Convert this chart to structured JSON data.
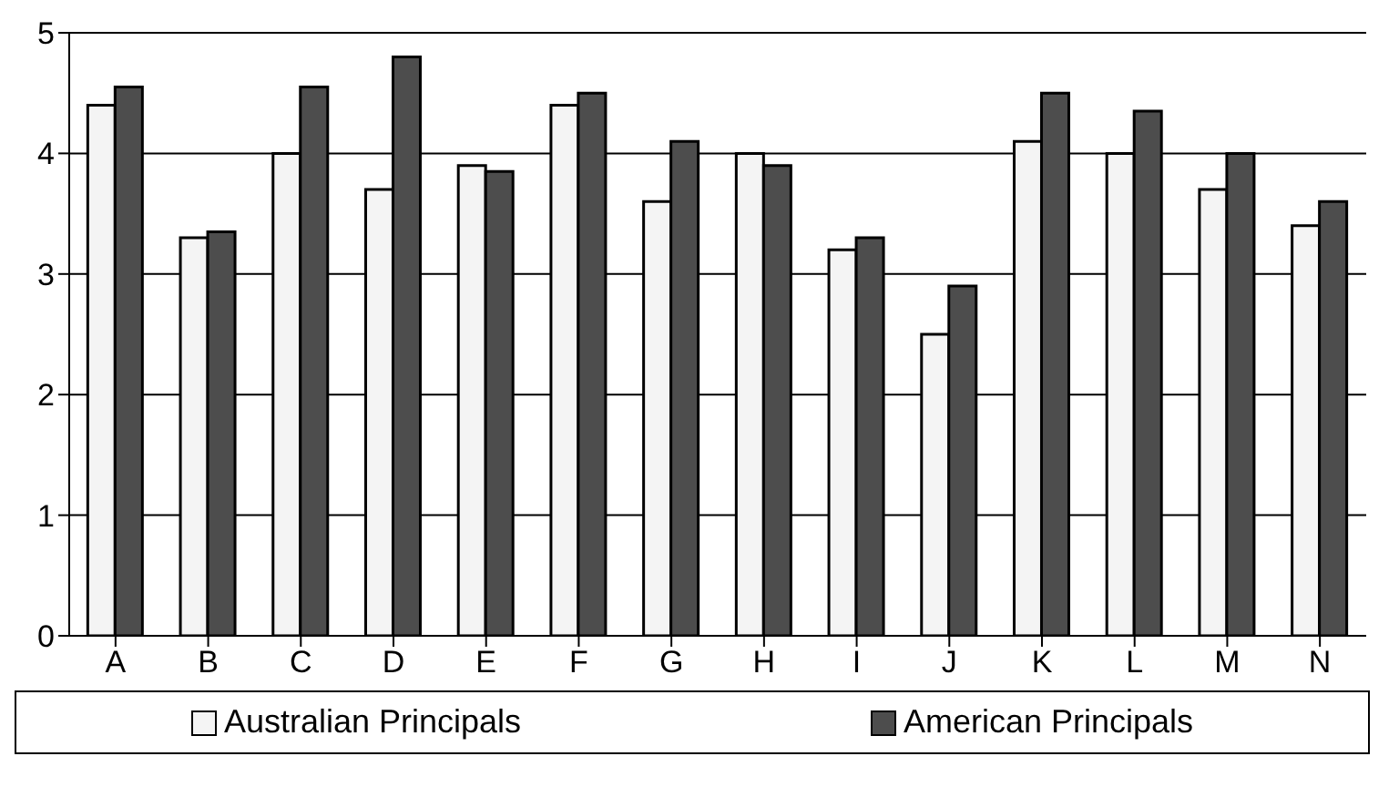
{
  "chart_data": {
    "type": "bar",
    "categories": [
      "A",
      "B",
      "C",
      "D",
      "E",
      "F",
      "G",
      "H",
      "I",
      "J",
      "K",
      "L",
      "M",
      "N"
    ],
    "series": [
      {
        "name": "Australian Principals",
        "color": "#f4f4f4",
        "values": [
          4.4,
          3.3,
          4.0,
          3.7,
          3.9,
          4.4,
          3.6,
          4.0,
          3.2,
          2.5,
          4.1,
          4.0,
          3.7,
          3.4
        ]
      },
      {
        "name": "American Principals",
        "color": "#4d4d4d",
        "values": [
          4.55,
          3.35,
          4.55,
          4.8,
          3.85,
          4.5,
          4.1,
          3.9,
          3.3,
          2.9,
          4.5,
          4.35,
          4.0,
          3.6
        ]
      }
    ],
    "ylim": [
      0,
      5
    ],
    "yticks": [
      0,
      1,
      2,
      3,
      4,
      5
    ],
    "grid": "y",
    "legend": "bottom"
  }
}
